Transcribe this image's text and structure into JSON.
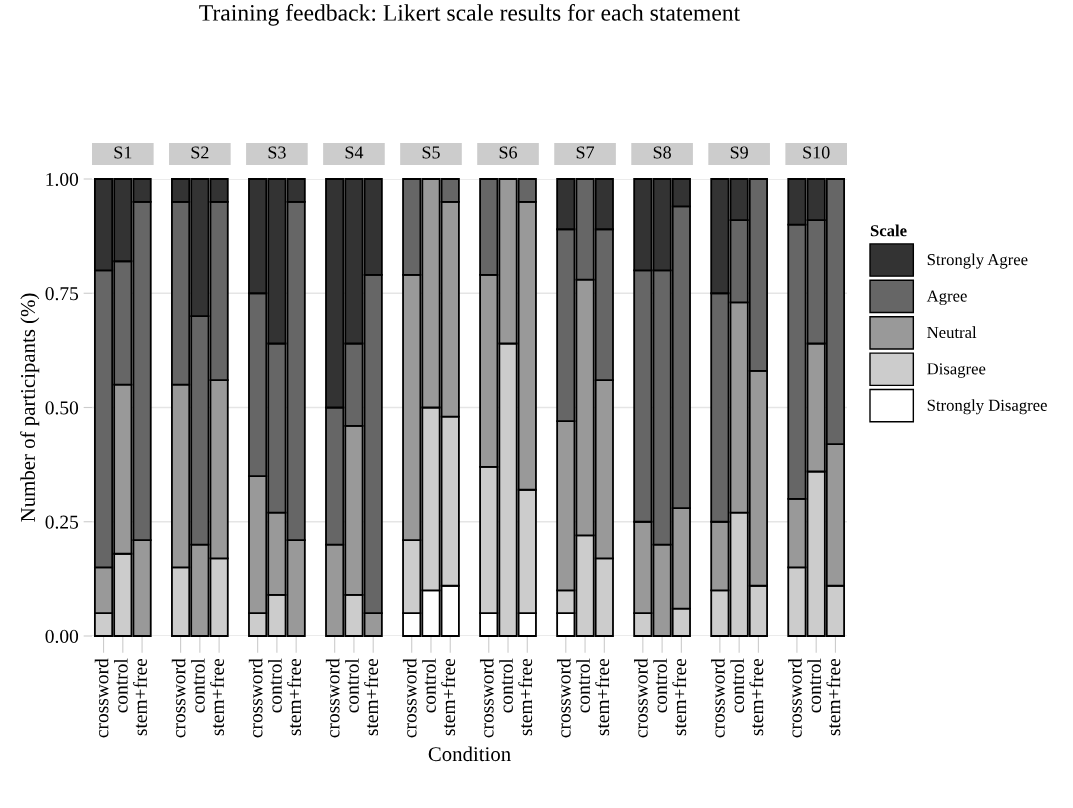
{
  "chart_data": {
    "type": "bar",
    "stacked": true,
    "title": "Training feedback: Likert scale results for each statement",
    "ylabel": "Number of participants (%)",
    "xlabel": "Condition",
    "legend_title": "Scale",
    "legend": "right",
    "grid": "y",
    "annotations": [
      "S1",
      "S2",
      "S3",
      "S4",
      "S5",
      "S6",
      "S7",
      "S8",
      "S9",
      "S10"
    ],
    "ylim": [
      0,
      1
    ],
    "yticks": [
      {
        "value": 0,
        "label": "0.00"
      },
      {
        "value": 0.25,
        "label": "0.25"
      },
      {
        "value": 0.5,
        "label": "0.50"
      },
      {
        "value": 0.75,
        "label": "0.75"
      },
      {
        "value": 1,
        "label": "1.00"
      }
    ],
    "categories": [
      "crossword",
      "control",
      "stem+free",
      null,
      "crossword",
      "control",
      "stem+free",
      null,
      "crossword",
      "control",
      "stem+free",
      null,
      "crossword",
      "control",
      "stem+free",
      null,
      "crossword",
      "control",
      "stem+free",
      null,
      "crossword",
      "control",
      "stem+free",
      null,
      "crossword",
      "control",
      "stem+free",
      null,
      "crossword",
      "control",
      "stem+free",
      null,
      "crossword",
      "control",
      "stem+free",
      null,
      "crossword",
      "control",
      "stem+free"
    ],
    "series": [
      {
        "name": "Strongly Disagree",
        "color": "#ffffff",
        "values": [
          null,
          null,
          null,
          null,
          null,
          null,
          null,
          null,
          null,
          null,
          null,
          null,
          null,
          null,
          null,
          null,
          0.05,
          0.1,
          0.11,
          null,
          0.05,
          null,
          0.05,
          null,
          0.05,
          null,
          null,
          null,
          null,
          null,
          null,
          null,
          null,
          null,
          null,
          null,
          null,
          null,
          null
        ]
      },
      {
        "name": "Disagree",
        "color": "#cccccc",
        "values": [
          0.05,
          0.18,
          null,
          null,
          0.15,
          null,
          0.17,
          null,
          0.05,
          0.09,
          null,
          null,
          null,
          0.09,
          null,
          null,
          0.16,
          0.4,
          0.37,
          null,
          0.32,
          0.64,
          0.27,
          null,
          0.05,
          0.22,
          0.17,
          null,
          0.05,
          null,
          0.06,
          null,
          0.1,
          0.27,
          0.11,
          null,
          0.15,
          0.36,
          0.11
        ]
      },
      {
        "name": "Neutral",
        "color": "#999999",
        "values": [
          0.1,
          0.37,
          0.21,
          null,
          0.4,
          0.2,
          0.39,
          null,
          0.3,
          0.18,
          0.21,
          null,
          0.2,
          0.37,
          0.05,
          null,
          0.58,
          0.5,
          0.47,
          null,
          0.42,
          0.36,
          0.63,
          null,
          0.37,
          0.56,
          0.39,
          null,
          0.2,
          0.2,
          0.22,
          null,
          0.15,
          0.46,
          0.47,
          null,
          0.15,
          0.28,
          0.31
        ]
      },
      {
        "name": "Agree",
        "color": "#666666",
        "values": [
          0.65,
          0.27,
          0.74,
          null,
          0.4,
          0.5,
          0.39,
          null,
          0.4,
          0.37,
          0.74,
          null,
          0.3,
          0.18,
          0.74,
          null,
          0.21,
          null,
          0.05,
          null,
          0.21,
          null,
          0.05,
          null,
          0.42,
          0.22,
          0.33,
          null,
          0.55,
          0.6,
          0.66,
          null,
          0.5,
          0.18,
          0.42,
          null,
          0.6,
          0.27,
          0.58
        ]
      },
      {
        "name": "Strongly Agree",
        "color": "#333333",
        "values": [
          0.2,
          0.18,
          0.05,
          null,
          0.05,
          0.3,
          0.05,
          null,
          0.25,
          0.36,
          0.05,
          null,
          0.5,
          0.36,
          0.21,
          null,
          null,
          null,
          null,
          null,
          null,
          null,
          null,
          null,
          0.11,
          null,
          0.11,
          null,
          0.2,
          0.2,
          0.06,
          null,
          0.25,
          0.09,
          null,
          null,
          0.1,
          0.09,
          null
        ]
      }
    ]
  }
}
